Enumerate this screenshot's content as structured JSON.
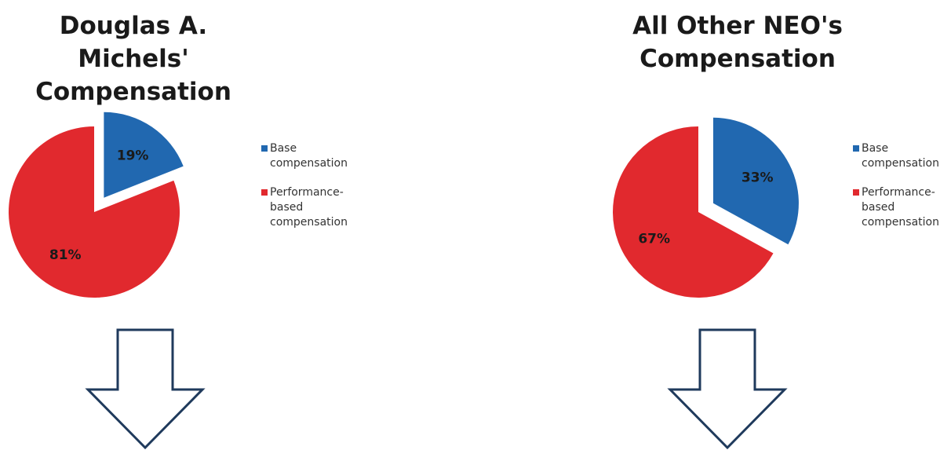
{
  "colors": {
    "base": "#2168b0",
    "performance": "#e1292e",
    "arrow_stroke": "#1f3a5c"
  },
  "chart_data": [
    {
      "type": "pie",
      "title": "Douglas A. Michels' Compensation",
      "categories": [
        "Base compensation",
        "Performance-based compensation"
      ],
      "values": [
        19,
        81
      ],
      "labels": [
        "19%",
        "81%"
      ],
      "exploded": "Base compensation",
      "legend": "right"
    },
    {
      "type": "pie",
      "title": "All Other NEO's Compensation",
      "categories": [
        "Base compensation",
        "Performance-based compensation"
      ],
      "values": [
        33,
        67
      ],
      "labels": [
        "33%",
        "67%"
      ],
      "exploded": "Base compensation",
      "legend": "right"
    }
  ]
}
